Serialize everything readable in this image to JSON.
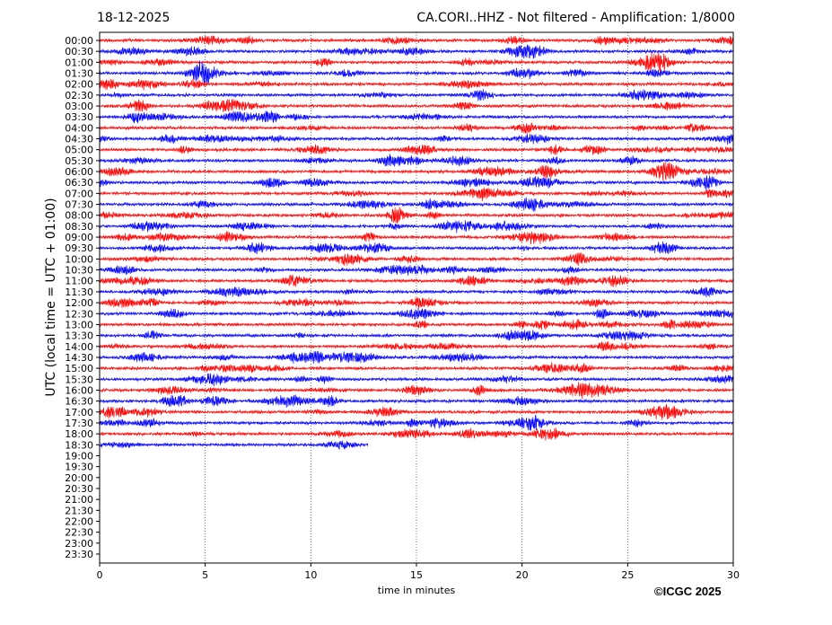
{
  "header": {
    "date": "18-12-2025",
    "title": "CA.CORI..HHZ - Not filtered - Amplification: 1/8000"
  },
  "copyright": "©ICGC 2025",
  "chart_data": {
    "type": "line",
    "title": "CA.CORI..HHZ - Not filtered - Amplification: 1/8000",
    "xlabel": "time in minutes",
    "ylabel": "UTC (local time = UTC + 01:00)",
    "xlim": [
      0,
      30
    ],
    "xticks": [
      "0",
      "5",
      "10",
      "15",
      "20",
      "25",
      "30"
    ],
    "yticks": [
      "00:00",
      "00:30",
      "01:00",
      "01:30",
      "02:00",
      "02:30",
      "03:00",
      "03:30",
      "04:00",
      "04:30",
      "05:00",
      "05:30",
      "06:00",
      "06:30",
      "07:00",
      "07:30",
      "08:00",
      "08:30",
      "09:00",
      "09:30",
      "10:00",
      "10:30",
      "11:00",
      "11:30",
      "12:00",
      "12:30",
      "13:00",
      "13:30",
      "14:00",
      "14:30",
      "15:00",
      "15:30",
      "16:00",
      "16:30",
      "17:00",
      "17:30",
      "18:00",
      "18:30",
      "19:00",
      "19:30",
      "20:00",
      "20:30",
      "21:00",
      "21:30",
      "22:00",
      "22:30",
      "23:00",
      "23:30"
    ],
    "grid": "vertical dotted at x ticks",
    "trace_colors": [
      "#ff0000",
      "#0000ff"
    ],
    "traces_recorded": 38,
    "last_trace_end_minutes": 12.7
  }
}
